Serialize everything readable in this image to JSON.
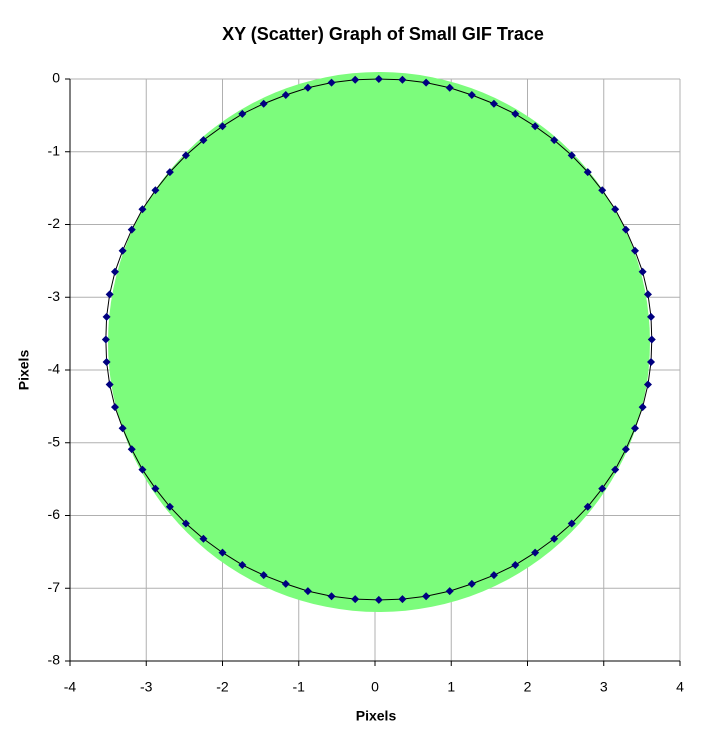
{
  "chart_data": {
    "type": "scatter",
    "title": "XY (Scatter) Graph of Small GIF Trace",
    "x_label": "Pixels",
    "y_label": "Pixels",
    "xlim": [
      -4,
      4
    ],
    "xticks": [
      -4,
      -3,
      -2,
      -1,
      0,
      1,
      2,
      3,
      4
    ],
    "ylim": [
      -8,
      0
    ],
    "yticks": [
      0,
      -1,
      -2,
      -3,
      -4,
      -5,
      -6,
      -7,
      -8
    ],
    "grid": true,
    "series": [
      {
        "color": "#000080",
        "line_color": "#000000",
        "x": [
          0.05,
          0.36,
          0.67,
          0.98,
          1.27,
          1.56,
          1.84,
          2.1,
          2.35,
          2.58,
          2.79,
          2.98,
          3.15,
          3.29,
          3.41,
          3.51,
          3.58,
          3.62,
          3.63,
          3.62,
          3.58,
          3.51,
          3.41,
          3.29,
          3.15,
          2.98,
          2.79,
          2.58,
          2.35,
          2.1,
          1.84,
          1.56,
          1.27,
          0.98,
          0.67,
          0.36,
          0.05,
          -0.26,
          -0.57,
          -0.88,
          -1.17,
          -1.46,
          -1.74,
          -2.0,
          -2.25,
          -2.48,
          -2.69,
          -2.88,
          -3.05,
          -3.19,
          -3.31,
          -3.41,
          -3.48,
          -3.52,
          -3.53,
          -3.52,
          -3.48,
          -3.41,
          -3.31,
          -3.19,
          -3.05,
          -2.88,
          -2.69,
          -2.48,
          -2.25,
          -2.0,
          -1.74,
          -1.46,
          -1.17,
          -0.88,
          -0.57,
          -0.26
        ],
        "y": [
          0,
          -0.01,
          -0.05,
          -0.12,
          -0.22,
          -0.34,
          -0.48,
          -0.65,
          -0.84,
          -1.05,
          -1.28,
          -1.53,
          -1.79,
          -2.07,
          -2.36,
          -2.65,
          -2.96,
          -3.27,
          -3.58,
          -3.89,
          -4.2,
          -4.51,
          -4.8,
          -5.09,
          -5.37,
          -5.63,
          -5.88,
          -6.11,
          -6.32,
          -6.51,
          -6.68,
          -6.82,
          -6.94,
          -7.04,
          -7.11,
          -7.15,
          -7.16,
          -7.15,
          -7.11,
          -7.04,
          -6.94,
          -6.82,
          -6.68,
          -6.51,
          -6.32,
          -6.11,
          -5.88,
          -5.63,
          -5.37,
          -5.09,
          -4.8,
          -4.51,
          -4.2,
          -3.89,
          -3.58,
          -3.27,
          -2.96,
          -2.65,
          -2.36,
          -2.07,
          -1.79,
          -1.53,
          -1.28,
          -1.05,
          -0.84,
          -0.65,
          -0.48,
          -0.34,
          -0.22,
          -0.12,
          -0.05,
          -0.01
        ]
      }
    ]
  }
}
